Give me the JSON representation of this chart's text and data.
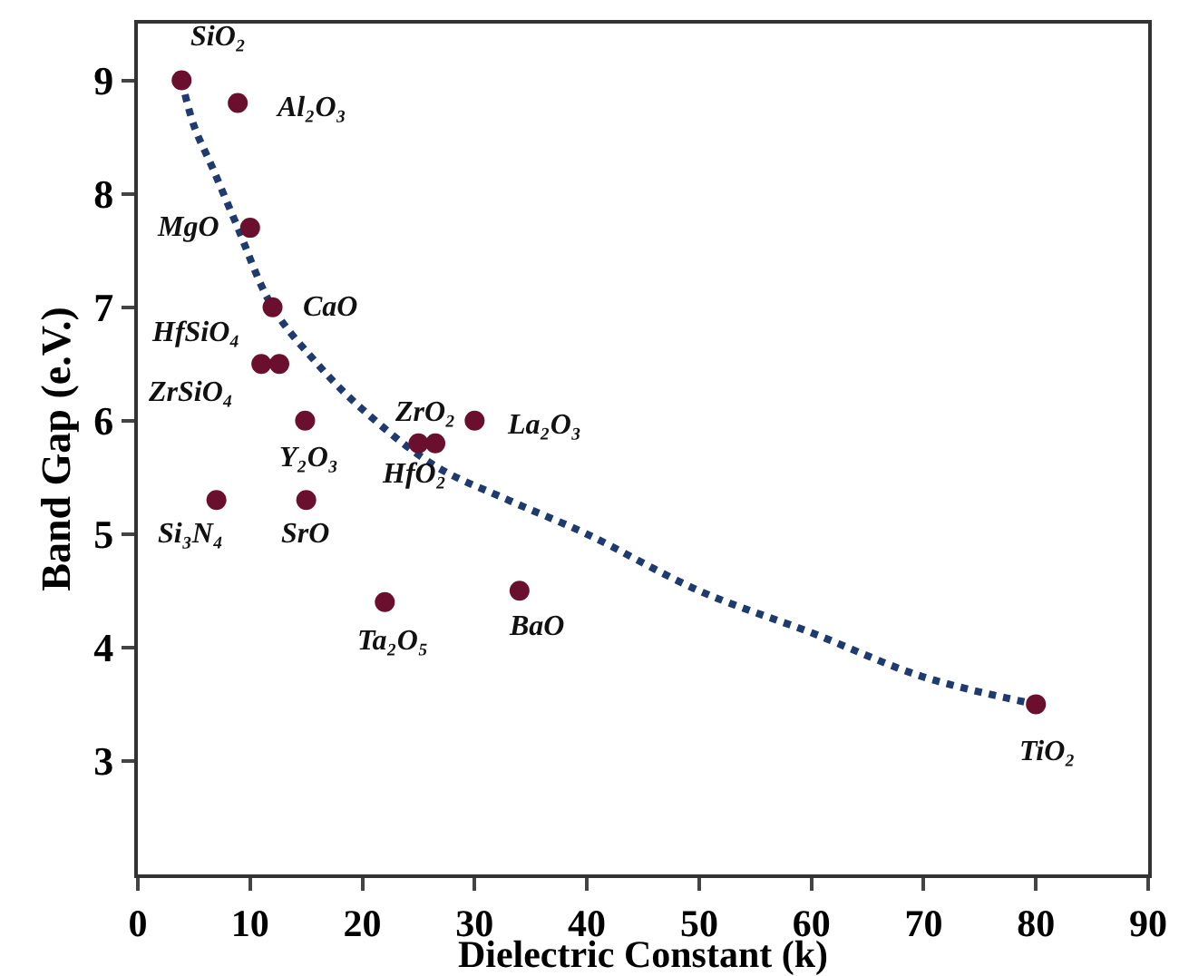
{
  "chart_data": {
    "type": "scatter",
    "xlabel": "Dielectric Constant (k)",
    "ylabel": "Band Gap (e.V.)",
    "xlim": [
      0,
      90
    ],
    "xticks": [
      0,
      10,
      20,
      30,
      40,
      50,
      60,
      70,
      80,
      90
    ],
    "ylim": [
      2,
      9.5
    ],
    "yticks": [
      3,
      4,
      5,
      6,
      7,
      8,
      9
    ],
    "grid": false,
    "series": [
      {
        "type": "scatter",
        "marker": "circle",
        "color": "#6b0f2f",
        "x": [
          3.9,
          8.9,
          10,
          12,
          11,
          12.6,
          14.9,
          25,
          26.5,
          30,
          7,
          15,
          22,
          34,
          80
        ],
        "values": [
          9,
          8.8,
          7.7,
          7,
          6.5,
          6.5,
          6,
          5.8,
          5.8,
          6,
          5.3,
          5.3,
          4.4,
          4.5,
          3.5
        ]
      },
      {
        "type": "line",
        "marker": "none",
        "line_style": "dotted",
        "color": "#1f3a6e",
        "x": [
          3.9,
          5,
          6.6,
          8.7,
          12,
          16,
          20,
          26.5,
          33,
          40,
          50,
          60,
          70,
          80
        ],
        "values": [
          9,
          8.6,
          8.24,
          7.75,
          7,
          6.5,
          6.1,
          5.6,
          5.3,
          5,
          4.5,
          4.13,
          3.74,
          3.5
        ]
      }
    ],
    "annotations": [
      {
        "text": "SiO₂",
        "x": 3.9,
        "y": 9
      },
      {
        "text": "Al₂O₃",
        "x": 8.9,
        "y": 8.8
      },
      {
        "text": "MgO",
        "x": 10,
        "y": 7.7
      },
      {
        "text": "CaO",
        "x": 12,
        "y": 7
      },
      {
        "text": "ZrSiO₄",
        "x": 11,
        "y": 6.5
      },
      {
        "text": "HfSiO₄",
        "x": 12.6,
        "y": 6.5
      },
      {
        "text": "Y₂O₃",
        "x": 14.9,
        "y": 6
      },
      {
        "text": "ZrO₂",
        "x": 25,
        "y": 5.8
      },
      {
        "text": "HfO₂",
        "x": 26.5,
        "y": 5.8
      },
      {
        "text": "La₂O₃",
        "x": 30,
        "y": 6
      },
      {
        "text": "Si₃N₄",
        "x": 7,
        "y": 5.3
      },
      {
        "text": "SrO",
        "x": 15,
        "y": 5.3
      },
      {
        "text": "Ta₂O₅",
        "x": 22,
        "y": 4.4
      },
      {
        "text": "BaO",
        "x": 34,
        "y": 4.5
      },
      {
        "text": "TiO₂",
        "x": 80,
        "y": 3.5
      }
    ]
  }
}
